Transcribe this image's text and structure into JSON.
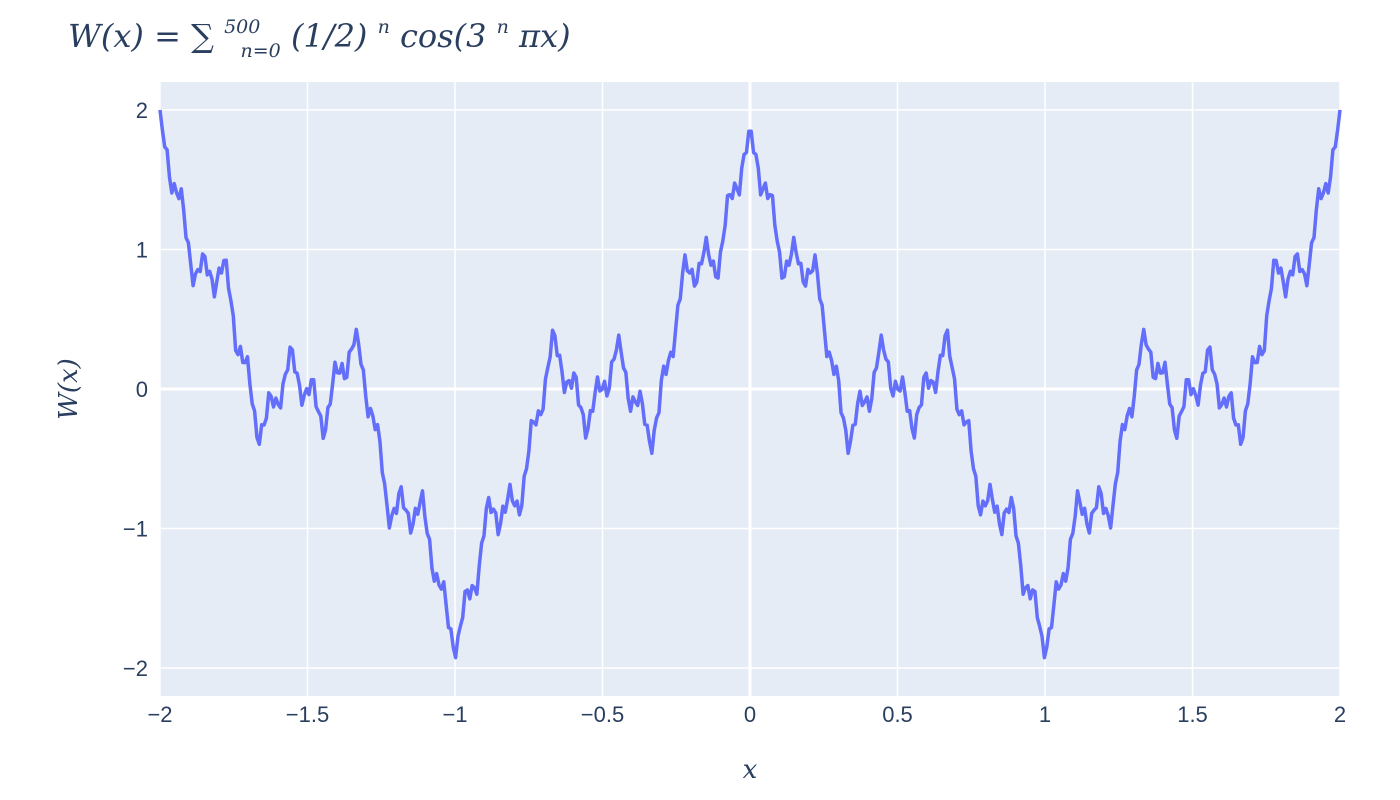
{
  "chart_data": {
    "type": "line",
    "title": {
      "main": "W(x) = ∑",
      "sup": "500",
      "sub": "n=0",
      "rest1": "(1/2)",
      "rest1_sup": "n",
      "rest2": "cos(3",
      "rest2_sup": "n",
      "rest3": "πx)"
    },
    "xlabel": "x",
    "ylabel": "W(x)",
    "xlim": [
      -2,
      2
    ],
    "ylim": [
      -2.2,
      2.2
    ],
    "x_ticks": [
      -2,
      -1.5,
      -1,
      -0.5,
      0,
      0.5,
      1,
      1.5,
      2
    ],
    "x_tick_labels": [
      "−2",
      "−1.5",
      "−1",
      "−0.5",
      "0",
      "0.5",
      "1",
      "1.5",
      "2"
    ],
    "y_ticks": [
      -2,
      -1,
      0,
      1,
      2
    ],
    "y_tick_labels": [
      "−2",
      "−1",
      "0",
      "1",
      "2"
    ],
    "grid": true,
    "series": [
      {
        "color": "#636efa",
        "function": "sum_{n=0}^{500} (1/2)^n cos(3^n pi x)",
        "n_max": 500,
        "samples": 500
      }
    ],
    "colors": {
      "plot_bg": "#e5ecf6",
      "grid": "#ffffff",
      "text": "#2a3f5f"
    }
  }
}
